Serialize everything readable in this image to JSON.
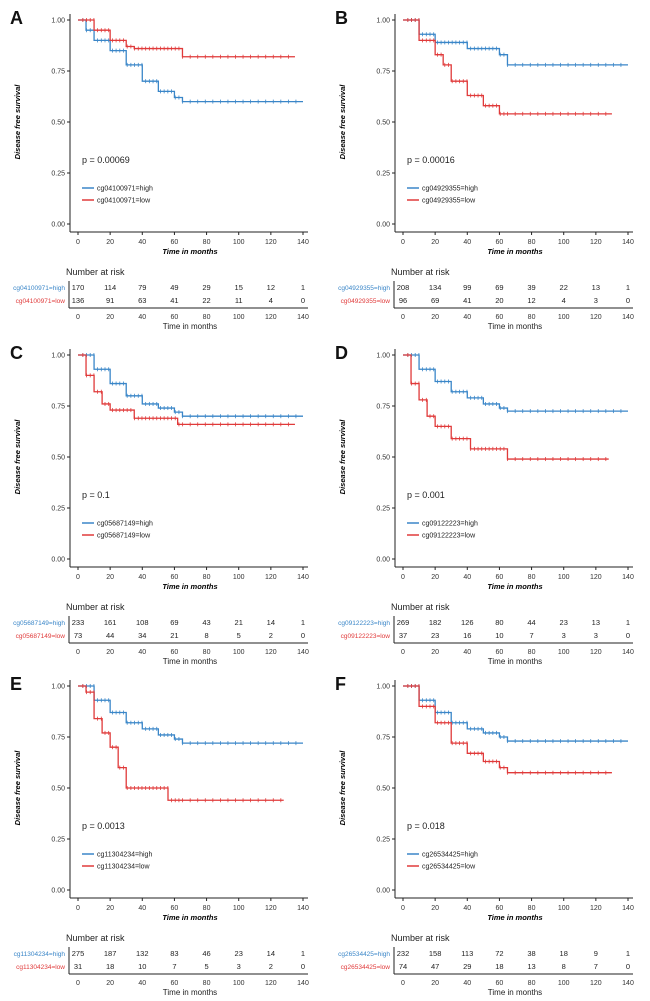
{
  "chart_data": {
    "type": "line",
    "shared": {
      "ylabel": "Disease free survival",
      "xlabel": "Time in months",
      "risk_title": "Number at risk",
      "x_ticks": [
        0,
        20,
        40,
        60,
        80,
        100,
        120,
        140
      ],
      "y_ticks": [
        "0.00",
        "0.25",
        "0.50",
        "0.75",
        "1.00"
      ],
      "xlim": [
        0,
        140
      ],
      "ylim": [
        0,
        1
      ],
      "colors": {
        "high": "#3a86c8",
        "low": "#e03a3a"
      }
    },
    "panels": [
      {
        "letter": "A",
        "pvalue": "p = 0.00069",
        "series": [
          {
            "name": "cg04100971=high",
            "group": "high",
            "points": [
              [
                0,
                1
              ],
              [
                5,
                0.95
              ],
              [
                10,
                0.9
              ],
              [
                20,
                0.85
              ],
              [
                30,
                0.78
              ],
              [
                40,
                0.7
              ],
              [
                50,
                0.65
              ],
              [
                60,
                0.62
              ],
              [
                65,
                0.6
              ],
              [
                140,
                0.6
              ]
            ],
            "risk": [
              170,
              114,
              79,
              49,
              29,
              15,
              12,
              1
            ]
          },
          {
            "name": "cg04100971=low",
            "group": "low",
            "points": [
              [
                0,
                1
              ],
              [
                10,
                0.95
              ],
              [
                20,
                0.9
              ],
              [
                30,
                0.87
              ],
              [
                35,
                0.86
              ],
              [
                65,
                0.82
              ],
              [
                135,
                0.82
              ]
            ],
            "risk": [
              136,
              91,
              63,
              41,
              22,
              11,
              4,
              0
            ]
          }
        ]
      },
      {
        "letter": "B",
        "pvalue": "p = 0.00016",
        "series": [
          {
            "name": "cg04929355=high",
            "group": "high",
            "points": [
              [
                0,
                1
              ],
              [
                10,
                0.93
              ],
              [
                20,
                0.89
              ],
              [
                40,
                0.86
              ],
              [
                60,
                0.83
              ],
              [
                65,
                0.78
              ],
              [
                140,
                0.78
              ]
            ],
            "risk": [
              208,
              134,
              99,
              69,
              39,
              22,
              13,
              1
            ]
          },
          {
            "name": "cg04929355=low",
            "group": "low",
            "points": [
              [
                0,
                1
              ],
              [
                10,
                0.9
              ],
              [
                20,
                0.83
              ],
              [
                25,
                0.78
              ],
              [
                30,
                0.7
              ],
              [
                40,
                0.63
              ],
              [
                50,
                0.58
              ],
              [
                60,
                0.54
              ],
              [
                130,
                0.54
              ]
            ],
            "risk": [
              96,
              69,
              41,
              20,
              12,
              4,
              3,
              0
            ]
          }
        ]
      },
      {
        "letter": "C",
        "pvalue": "p = 0.1",
        "series": [
          {
            "name": "cg05687149=high",
            "group": "high",
            "points": [
              [
                0,
                1
              ],
              [
                10,
                0.93
              ],
              [
                20,
                0.86
              ],
              [
                30,
                0.8
              ],
              [
                40,
                0.76
              ],
              [
                50,
                0.74
              ],
              [
                60,
                0.72
              ],
              [
                65,
                0.7
              ],
              [
                140,
                0.7
              ]
            ],
            "risk": [
              233,
              161,
              108,
              69,
              43,
              21,
              14,
              1
            ]
          },
          {
            "name": "cg05687149=low",
            "group": "low",
            "points": [
              [
                0,
                1
              ],
              [
                5,
                0.9
              ],
              [
                10,
                0.82
              ],
              [
                15,
                0.76
              ],
              [
                20,
                0.73
              ],
              [
                30,
                0.73
              ],
              [
                35,
                0.69
              ],
              [
                60,
                0.69
              ],
              [
                62,
                0.66
              ],
              [
                135,
                0.66
              ]
            ],
            "risk": [
              73,
              44,
              34,
              21,
              8,
              5,
              2,
              0
            ]
          }
        ]
      },
      {
        "letter": "D",
        "pvalue": "p = 0.001",
        "series": [
          {
            "name": "cg09122223=high",
            "group": "high",
            "points": [
              [
                0,
                1
              ],
              [
                10,
                0.93
              ],
              [
                20,
                0.87
              ],
              [
                30,
                0.82
              ],
              [
                40,
                0.79
              ],
              [
                50,
                0.76
              ],
              [
                60,
                0.74
              ],
              [
                65,
                0.725
              ],
              [
                140,
                0.725
              ]
            ],
            "risk": [
              269,
              182,
              126,
              80,
              44,
              23,
              13,
              1
            ]
          },
          {
            "name": "cg09122223=low",
            "group": "low",
            "points": [
              [
                0,
                1
              ],
              [
                5,
                0.86
              ],
              [
                10,
                0.78
              ],
              [
                15,
                0.7
              ],
              [
                20,
                0.65
              ],
              [
                30,
                0.59
              ],
              [
                40,
                0.59
              ],
              [
                42,
                0.54
              ],
              [
                60,
                0.54
              ],
              [
                65,
                0.49
              ],
              [
                128,
                0.49
              ]
            ],
            "risk": [
              37,
              23,
              16,
              10,
              7,
              3,
              3,
              0
            ]
          }
        ]
      },
      {
        "letter": "E",
        "pvalue": "p = 0.0013",
        "series": [
          {
            "name": "cg11304234=high",
            "group": "high",
            "points": [
              [
                0,
                1
              ],
              [
                10,
                0.93
              ],
              [
                20,
                0.87
              ],
              [
                30,
                0.82
              ],
              [
                40,
                0.79
              ],
              [
                50,
                0.76
              ],
              [
                60,
                0.74
              ],
              [
                65,
                0.72
              ],
              [
                140,
                0.72
              ]
            ],
            "risk": [
              275,
              187,
              132,
              83,
              46,
              23,
              14,
              1
            ]
          },
          {
            "name": "cg11304234=low",
            "group": "low",
            "points": [
              [
                0,
                1
              ],
              [
                5,
                0.97
              ],
              [
                10,
                0.84
              ],
              [
                15,
                0.77
              ],
              [
                20,
                0.7
              ],
              [
                25,
                0.6
              ],
              [
                30,
                0.5
              ],
              [
                55,
                0.5
              ],
              [
                56,
                0.44
              ],
              [
                128,
                0.44
              ]
            ],
            "risk": [
              31,
              18,
              10,
              7,
              5,
              3,
              2,
              0
            ]
          }
        ]
      },
      {
        "letter": "F",
        "pvalue": "p = 0.018",
        "series": [
          {
            "name": "cg26534425=high",
            "group": "high",
            "points": [
              [
                0,
                1
              ],
              [
                10,
                0.93
              ],
              [
                20,
                0.87
              ],
              [
                30,
                0.82
              ],
              [
                40,
                0.79
              ],
              [
                50,
                0.77
              ],
              [
                60,
                0.75
              ],
              [
                65,
                0.73
              ],
              [
                140,
                0.73
              ]
            ],
            "risk": [
              232,
              158,
              113,
              72,
              38,
              18,
              9,
              1
            ]
          },
          {
            "name": "cg26534425=low",
            "group": "low",
            "points": [
              [
                0,
                1
              ],
              [
                10,
                0.9
              ],
              [
                20,
                0.82
              ],
              [
                30,
                0.72
              ],
              [
                40,
                0.67
              ],
              [
                50,
                0.63
              ],
              [
                60,
                0.6
              ],
              [
                65,
                0.575
              ],
              [
                130,
                0.575
              ]
            ],
            "risk": [
              74,
              47,
              29,
              18,
              13,
              8,
              7,
              0
            ]
          }
        ]
      }
    ]
  }
}
